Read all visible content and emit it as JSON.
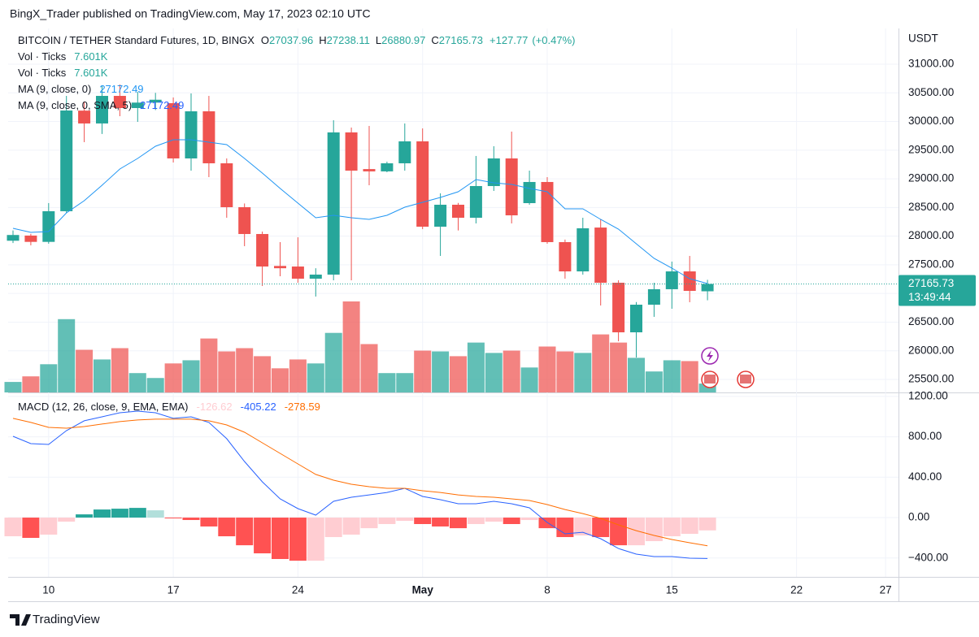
{
  "header": "BingX_Trader published on TradingView.com, May 17, 2023 02:10 UTC",
  "footer": "TradingView",
  "chart_data": {
    "type": "candlestick",
    "title": "BITCOIN / TETHER Standard Futures, 1D, BINGX",
    "currency": "USDT",
    "countdown": "13:49:44",
    "up_color": "#26a69a",
    "down_color": "#ef5350",
    "ohlc_prefixes": [
      "O",
      "H",
      "L",
      "C"
    ],
    "change": {
      "value": 127.77,
      "label": "+127.77"
    },
    "change_percent": {
      "value": 0.47,
      "label": "(+0.47%)"
    },
    "categories": [
      null,
      null,
      "10",
      null,
      null,
      null,
      null,
      null,
      null,
      "17",
      null,
      null,
      null,
      null,
      null,
      null,
      "24",
      null,
      null,
      null,
      null,
      null,
      null,
      "May",
      null,
      null,
      null,
      null,
      null,
      null,
      "8",
      null,
      null,
      null,
      null,
      null,
      null,
      "15",
      null,
      null,
      null,
      null,
      null,
      null,
      "22",
      null,
      null,
      null,
      null,
      "27"
    ],
    "open": [
      27920,
      28010,
      27900,
      28435,
      30190,
      29966,
      30447,
      30235,
      30330,
      30320,
      29356,
      30178,
      29271,
      28505,
      28037,
      27480,
      27470,
      27258,
      27329,
      29810,
      29170,
      29130,
      29271,
      29654,
      28165,
      28548,
      28321,
      28874,
      29356,
      28576,
      28945,
      27896,
      27385,
      28150,
      27187,
      26322,
      26804,
      27074,
      27385,
      27037.96,
      null,
      null,
      null,
      null,
      null,
      null,
      null,
      null,
      null,
      null
    ],
    "high": [
      28100,
      28040,
      28577,
      30447,
      30350,
      30630,
      30646,
      30520,
      30500,
      30420,
      30490,
      30447,
      29356,
      28570,
      28080,
      27896,
      27980,
      27440,
      30022,
      29895,
      29923,
      29300,
      29966,
      29880,
      28747,
      28580,
      29399,
      29569,
      29824,
      29143,
      29030,
      27940,
      28321,
      28293,
      27230,
      26850,
      27187,
      27556,
      27655,
      27238.11,
      null,
      null,
      null,
      null,
      null,
      null,
      null,
      null,
      null,
      null
    ],
    "low": [
      27880,
      27840,
      27868,
      28400,
      29640,
      29782,
      30093,
      29994,
      30200,
      29285,
      29143,
      29030,
      28321,
      27825,
      27130,
      27300,
      27187,
      26946,
      27230,
      27230,
      28888,
      29115,
      29143,
      28122,
      27655,
      28100,
      28222,
      28789,
      28222,
      28548,
      27868,
      27258,
      27329,
      26790,
      26166,
      25883,
      26592,
      26733,
      26847,
      26880.97,
      null,
      null,
      null,
      null,
      null,
      null,
      null,
      null,
      null,
      null
    ],
    "close": [
      28020,
      27900,
      28435,
      30192,
      29966,
      30447,
      30235,
      30330,
      30380,
      29356,
      30178,
      29271,
      28505,
      28037,
      27470,
      27440,
      27258,
      27329,
      29810,
      29143,
      29130,
      29271,
      29654,
      28165,
      28548,
      28321,
      28874,
      29356,
      28363,
      28945,
      27896,
      27385,
      28137,
      27187,
      26322,
      26804,
      27074,
      27385,
      27045,
      27165.73,
      null,
      null,
      null,
      null,
      null,
      null,
      null,
      null,
      null,
      null
    ],
    "ylim": [
      25273,
      31624
    ],
    "yticks": [
      {
        "value": 25500,
        "label": "25500.00"
      },
      {
        "value": 26000,
        "label": "26000.00"
      },
      {
        "value": 26500,
        "label": "26500.00"
      },
      {
        "value": 27000,
        "label": "27000.00"
      },
      {
        "value": 27500,
        "label": "27500.00"
      },
      {
        "value": 28000,
        "label": "28000.00"
      },
      {
        "value": 28500,
        "label": "28500.00"
      },
      {
        "value": 29000,
        "label": "29000.00"
      },
      {
        "value": 29500,
        "label": "29500.00"
      },
      {
        "value": 30000,
        "label": "30000.00"
      },
      {
        "value": 30500,
        "label": "30500.00"
      },
      {
        "value": 31000,
        "label": "31000.00"
      }
    ],
    "grid": true,
    "volume": {
      "values": [
        9000,
        13800,
        24200,
        62900,
        36600,
        28300,
        38000,
        16600,
        12400,
        24900,
        27600,
        46300,
        35200,
        38000,
        31100,
        20700,
        28300,
        24900,
        51100,
        78100,
        41500,
        16600,
        16600,
        35900,
        35200,
        31100,
        42800,
        33900,
        35900,
        21400,
        39400,
        35200,
        33900,
        49800,
        42800,
        29700,
        18000,
        27600,
        26900,
        7601,
        null,
        null,
        null,
        null,
        null,
        null,
        null,
        null,
        null,
        null
      ],
      "legend": [
        {
          "name": "Vol · Ticks",
          "value_label": "7.601K"
        },
        {
          "name": "Vol · Ticks",
          "value_label": "7.601K"
        }
      ]
    },
    "ma": [
      {
        "name": "MA (9, close, 0)",
        "color": "#2196f3",
        "values": [
          28137,
          28066,
          28080,
          28406,
          28619,
          28888,
          29172,
          29356,
          29569,
          29682,
          29682,
          29640,
          29597,
          29356,
          29101,
          28832,
          28576,
          28321,
          28364,
          28321,
          28293,
          28364,
          28505,
          28590,
          28675,
          28775,
          28987,
          28931,
          28902,
          28832,
          28775,
          28477,
          28477,
          28293,
          28123,
          27867,
          27612,
          27442,
          27258,
          27172.49,
          null,
          null,
          null,
          null,
          null,
          null,
          null,
          null,
          null,
          null
        ]
      },
      {
        "name": "MA (9, close, 0, SMA, 5)",
        "color": "#2962ff",
        "value": 27172.49
      }
    ],
    "macd": {
      "title": "MACD (12, 26, close, 9, EMA, EMA)",
      "ylim": [
        -587,
        1239
      ],
      "yticks": [
        {
          "value": -400,
          "label": "−400.00"
        },
        {
          "value": 0,
          "label": "0.00"
        },
        {
          "value": 400,
          "label": "400.00"
        },
        {
          "value": 800,
          "label": "800.00"
        },
        {
          "value": 1200,
          "label": "1200.00"
        }
      ],
      "histogram": {
        "colors": {
          "up_rising": "#26a69a",
          "up_falling": "#b2dfdb",
          "down_falling": "#ff5252",
          "down_rising": "#ffcdd2"
        },
        "values": [
          -185,
          -201,
          -169,
          -40,
          32,
          80,
          88,
          96,
          72,
          -4,
          -24,
          -88,
          -185,
          -274,
          -354,
          -410,
          -427,
          -427,
          -193,
          -169,
          -105,
          -64,
          -32,
          -64,
          -88,
          -105,
          -64,
          -40,
          -64,
          -24,
          -105,
          -193,
          -177,
          -193,
          -274,
          -274,
          -233,
          -185,
          -161,
          -126.62,
          null,
          null,
          null,
          null,
          null,
          null,
          null,
          null,
          null,
          null
        ]
      },
      "macd_line": {
        "color": "#2962ff",
        "values": [
          805,
          732,
          724,
          861,
          958,
          998,
          1038,
          1054,
          1038,
          982,
          998,
          942,
          781,
          555,
          354,
          185,
          89,
          24,
          161,
          201,
          225,
          249,
          290,
          209,
          177,
          137,
          137,
          161,
          137,
          97,
          -48,
          -161,
          -145,
          -209,
          -306,
          -362,
          -386,
          -386,
          -402,
          -405.22,
          null,
          null,
          null,
          null,
          null,
          null,
          null,
          null,
          null,
          null
        ]
      },
      "signal_line": {
        "color": "#ff6d00",
        "values": [
          982,
          942,
          893,
          885,
          901,
          926,
          950,
          966,
          974,
          974,
          974,
          958,
          917,
          845,
          740,
          636,
          531,
          427,
          370,
          330,
          306,
          290,
          290,
          266,
          249,
          225,
          209,
          201,
          185,
          169,
          129,
          80,
          40,
          -8,
          -72,
          -129,
          -177,
          -217,
          -249,
          -278.59,
          null,
          null,
          null,
          null,
          null,
          null,
          null,
          null,
          null,
          null
        ]
      }
    }
  }
}
